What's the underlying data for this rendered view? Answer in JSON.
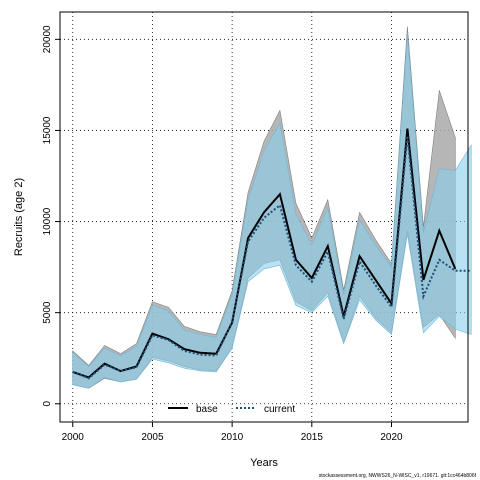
{
  "chart_data": {
    "type": "line",
    "xlabel": "Years",
    "ylabel": "Recruits (age 2)",
    "xlim": [
      1999.2,
      2024.8
    ],
    "ylim": [
      -1000,
      21500
    ],
    "xticks": [
      2000,
      2005,
      2010,
      2015,
      2020
    ],
    "yticks": [
      0,
      5000,
      10000,
      15000,
      20000
    ],
    "grid": true,
    "legend": {
      "position": "bottom-center",
      "entries": [
        "base",
        "current"
      ]
    },
    "x": [
      2000,
      2001,
      2002,
      2003,
      2004,
      2005,
      2006,
      2007,
      2008,
      2009,
      2010,
      2011,
      2012,
      2013,
      2014,
      2015,
      2016,
      2017,
      2018,
      2019,
      2020,
      2021,
      2022,
      2023,
      2024,
      2025
    ],
    "series": [
      {
        "name": "base",
        "color": "#000000",
        "band_color": "#a9a9a9",
        "values": [
          1750,
          1450,
          2200,
          1800,
          2050,
          3850,
          3550,
          3000,
          2800,
          2750,
          4450,
          9100,
          10500,
          11500,
          7900,
          6900,
          8650,
          4800,
          8100,
          6800,
          5500,
          15100,
          6800,
          9500,
          7400,
          null
        ],
        "lower": [
          1050,
          850,
          1400,
          1200,
          1350,
          2550,
          2350,
          2050,
          1850,
          1800,
          3100,
          6900,
          7700,
          7900,
          5600,
          5100,
          6100,
          3350,
          5900,
          4700,
          3900,
          9500,
          4200,
          4900,
          3600,
          null
        ],
        "upper": [
          2900,
          2100,
          3200,
          2750,
          3300,
          5600,
          5300,
          4250,
          3950,
          3800,
          6200,
          11600,
          14400,
          16100,
          11000,
          9100,
          11200,
          6250,
          10500,
          9000,
          7700,
          20700,
          9700,
          17200,
          14600,
          null
        ]
      },
      {
        "name": "current",
        "color": "#1f4e79",
        "band_color": "#87ceeb",
        "values": [
          1750,
          1400,
          2150,
          1800,
          2000,
          3750,
          3500,
          2900,
          2700,
          2650,
          4500,
          8900,
          10200,
          10900,
          7600,
          6700,
          8350,
          4650,
          7800,
          6500,
          5300,
          14700,
          5900,
          7900,
          7300,
          7300
        ],
        "lower": [
          1050,
          850,
          1450,
          1200,
          1350,
          2450,
          2250,
          1950,
          1800,
          1750,
          3050,
          6700,
          7400,
          7600,
          5400,
          5000,
          5900,
          3300,
          5700,
          4600,
          3800,
          9300,
          3900,
          4800,
          4100,
          3800
        ],
        "upper": [
          2800,
          2050,
          3050,
          2650,
          3150,
          5400,
          5100,
          4050,
          3800,
          3650,
          6000,
          11200,
          13900,
          15400,
          10400,
          8700,
          10800,
          6000,
          10100,
          8700,
          7500,
          20300,
          9400,
          12900,
          12800,
          14200
        ]
      }
    ],
    "footnote": "stockassessment.org, NWWS26_N-WISC_v1, r19671. git:1cc464b806f"
  }
}
